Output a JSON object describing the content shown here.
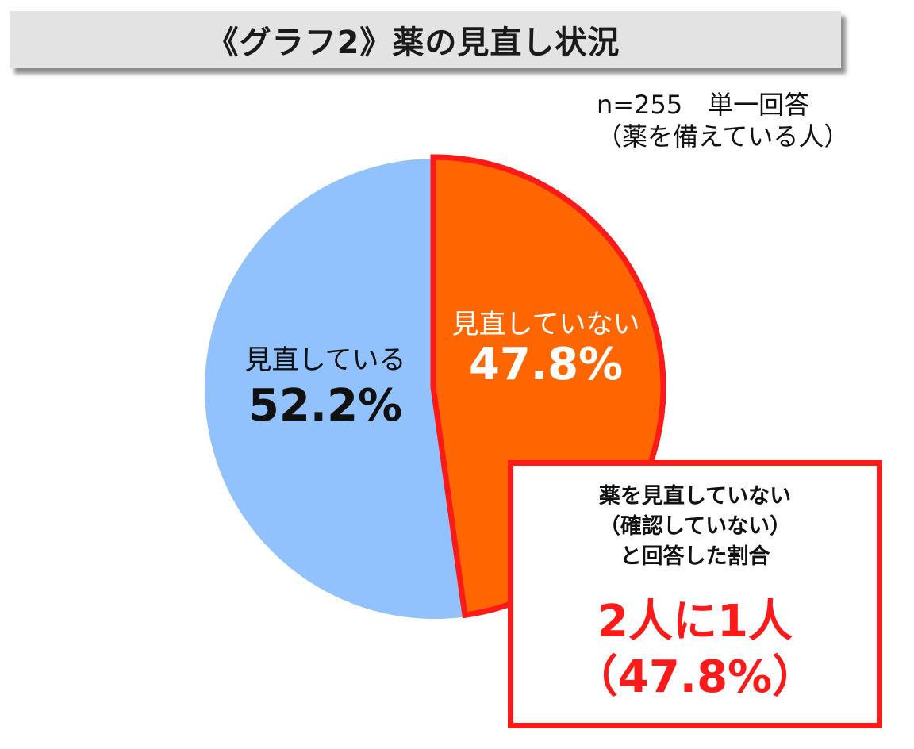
{
  "title": "《グラフ2》薬の見直し状況",
  "note": {
    "line1": "n=255　単一回答",
    "line2": "（薬を備えている人）"
  },
  "chart_data": {
    "type": "pie",
    "n": 255,
    "slices": [
      {
        "label": "見直していない",
        "value": 47.8,
        "value_label": "47.8%",
        "color": "#ff6600",
        "highlighted": true
      },
      {
        "label": "見直している",
        "value": 52.2,
        "value_label": "52.2%",
        "color": "#91c2fd",
        "highlighted": false
      }
    ]
  },
  "callout": {
    "desc_line1": "薬を見直していない",
    "desc_line2": "（確認していない）",
    "desc_line3": "と回答した割合",
    "big_line1": "2人に1人",
    "big_line2": "（47.8%）"
  },
  "colors": {
    "highlight_border": "#ff1a1a",
    "title_bg": "#e3e3e3"
  }
}
